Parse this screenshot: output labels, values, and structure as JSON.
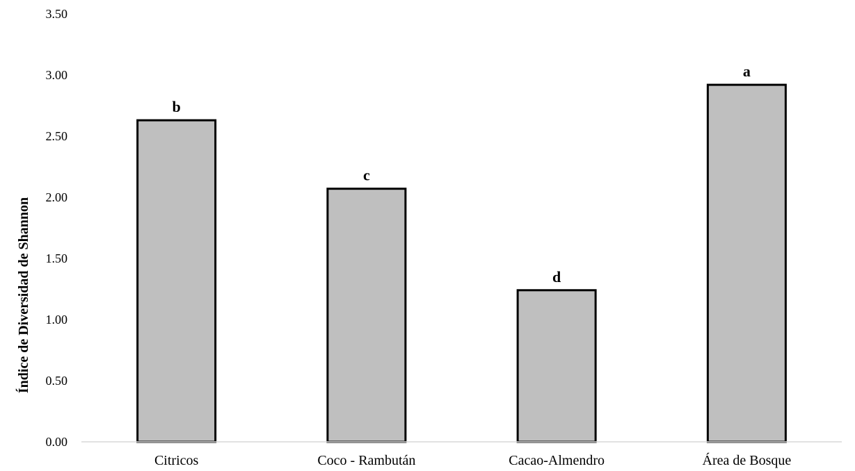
{
  "chart_data": {
    "type": "bar",
    "title": "",
    "xlabel": "",
    "ylabel": "Índice de Diversidad de Shannon",
    "categories": [
      "Citricos",
      "Coco - Rambután",
      "Cacao-Almendro",
      "Área de Bosque"
    ],
    "values": [
      2.63,
      2.07,
      1.24,
      2.92
    ],
    "bar_labels": [
      "b",
      "c",
      "d",
      "a"
    ],
    "ylim": [
      0,
      3.5
    ],
    "yticks": [
      "0.00",
      "0.50",
      "1.00",
      "1.50",
      "2.00",
      "2.50",
      "3.00",
      "3.50"
    ],
    "grid": false,
    "legend": "none",
    "colors": {
      "bar_fill": "#bfbfbf",
      "bar_stroke": "#000000",
      "axis": "#d9d9d9"
    }
  }
}
